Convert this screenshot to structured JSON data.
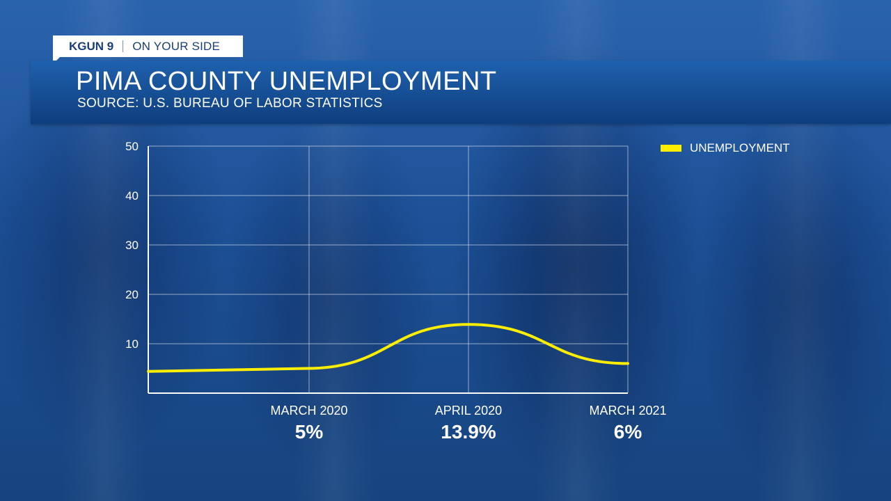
{
  "station": {
    "call_sign": "KGUN 9",
    "slogan": "ON YOUR SIDE"
  },
  "header": {
    "title": "PIMA COUNTY UNEMPLOYMENT",
    "subtitle": "SOURCE: U.S. BUREAU OF LABOR STATISTICS"
  },
  "legend": {
    "label": "UNEMPLOYMENT",
    "color": "#ffee00"
  },
  "chart_data": {
    "type": "line",
    "title": "PIMA COUNTY UNEMPLOYMENT",
    "source": "SOURCE: U.S. BUREAU OF LABOR STATISTICS",
    "ylim": [
      0,
      50
    ],
    "yticks": [
      10,
      20,
      30,
      40,
      50
    ],
    "grid": true,
    "legend_position": "top-right",
    "series": [
      {
        "name": "UNEMPLOYMENT",
        "color": "#ffee00",
        "points": [
          {
            "x": "",
            "y": 4.4
          },
          {
            "x": "MARCH 2020",
            "y": 5
          },
          {
            "x": "APRIL 2020",
            "y": 13.9
          },
          {
            "x": "MARCH 2021",
            "y": 6
          }
        ]
      }
    ],
    "category_labels": [
      {
        "name": "MARCH 2020",
        "value": "5%"
      },
      {
        "name": "APRIL 2020",
        "value": "13.9%"
      },
      {
        "name": "MARCH 2021",
        "value": "6%"
      }
    ]
  }
}
